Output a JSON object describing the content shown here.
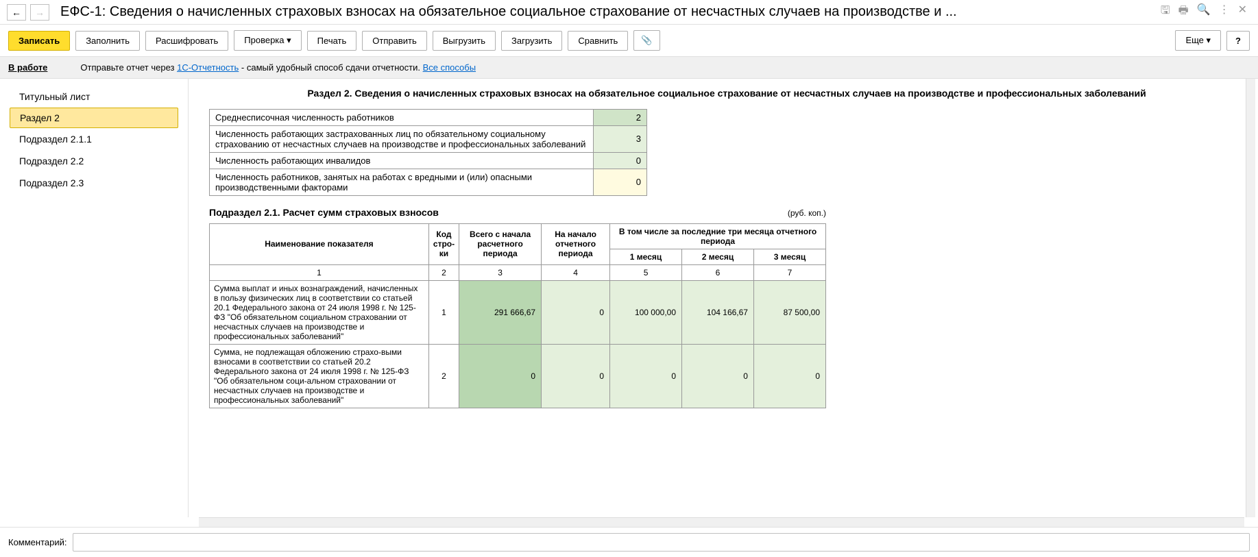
{
  "titlebar": {
    "title": "ЕФС-1: Сведения о начисленных страховых взносах на обязательное социальное страхование от несчастных случаев на производстве и ..."
  },
  "toolbar": {
    "write": "Записать",
    "fill": "Заполнить",
    "decode": "Расшифровать",
    "check": "Проверка",
    "print": "Печать",
    "send": "Отправить",
    "export": "Выгрузить",
    "import": "Загрузить",
    "compare": "Сравнить",
    "more": "Еще",
    "help": "?"
  },
  "infobar": {
    "status": "В работе",
    "text1": "Отправьте отчет через ",
    "link1": "1С-Отчетность",
    "text2": " - самый удобный способ сдачи отчетности. ",
    "link2": "Все способы"
  },
  "sidebar": {
    "items": [
      {
        "label": "Титульный лист"
      },
      {
        "label": "Раздел 2"
      },
      {
        "label": "Подраздел 2.1.1"
      },
      {
        "label": "Подраздел 2.2"
      },
      {
        "label": "Подраздел 2.3"
      }
    ],
    "active_index": 1
  },
  "section2": {
    "title": "Раздел 2. Сведения о начисленных страховых взносах на обязательное социальное страхование от несчастных случаев на производстве и профессиональных заболеваний",
    "summary_rows": [
      {
        "label": "Среднесписочная численность работников",
        "value": "2",
        "bg": "bg-green-dark"
      },
      {
        "label": "Численность работающих застрахованных лиц по обязательному социальному страхованию от несчастных случаев на производстве и профессиональных заболеваний",
        "value": "3",
        "bg": "bg-green-light"
      },
      {
        "label": "Численность работающих инвалидов",
        "value": "0",
        "bg": "bg-green-light"
      },
      {
        "label": "Численность работников, занятых на работах с вредными и (или) опасными производственными факторами",
        "value": "0",
        "bg": "bg-yellow"
      }
    ]
  },
  "sub21": {
    "title": "Подраздел 2.1. Расчет сумм страховых взносов",
    "units": "(руб. коп.)",
    "headers": {
      "name": "Наименование показателя",
      "code": "Код стро-ки",
      "total": "Всего с начала расчетного периода",
      "start": "На начало отчетного периода",
      "months_header": "В том числе за последние три месяца отчетного периода",
      "m1": "1 месяц",
      "m2": "2 месяц",
      "m3": "3 месяц",
      "hnums": [
        "1",
        "2",
        "3",
        "4",
        "5",
        "6",
        "7"
      ]
    },
    "rows": [
      {
        "name": "Сумма выплат и иных вознаграждений, начисленных в пользу физических лиц в соответствии со статьей 20.1 Федерального закона от 24 июля 1998 г. № 125-ФЗ \"Об обязательном социальном страховании от несчастных случаев на производстве и профессиональных заболеваний\"",
        "code": "1",
        "total": "291 666,67",
        "start": "0",
        "m1": "100 000,00",
        "m2": "104 166,67",
        "m3": "87 500,00",
        "total_bg": "#b8d7b0",
        "cell_bg": "#e4f0dc"
      },
      {
        "name": "Сумма, не подлежащая обложению страхо-выми взносами в соответствии со статьей 20.2 Федерального закона от 24 июля 1998 г. № 125-ФЗ \"Об обязательном соци-альном страховании от несчастных случаев на производстве и профессиональных заболеваний\"",
        "code": "2",
        "total": "0",
        "start": "0",
        "m1": "0",
        "m2": "0",
        "m3": "0",
        "total_bg": "#b8d7b0",
        "cell_bg": "#e4f0dc"
      }
    ]
  },
  "comment": {
    "label": "Комментарий:",
    "value": ""
  },
  "colors": {
    "primary_btn": "#ffdd2d",
    "sidebar_active": "#ffe89e",
    "green_dark": "#b8d7b0",
    "green_light": "#e4f0dc",
    "yellow": "#fffbe0",
    "link": "#0066cc"
  }
}
